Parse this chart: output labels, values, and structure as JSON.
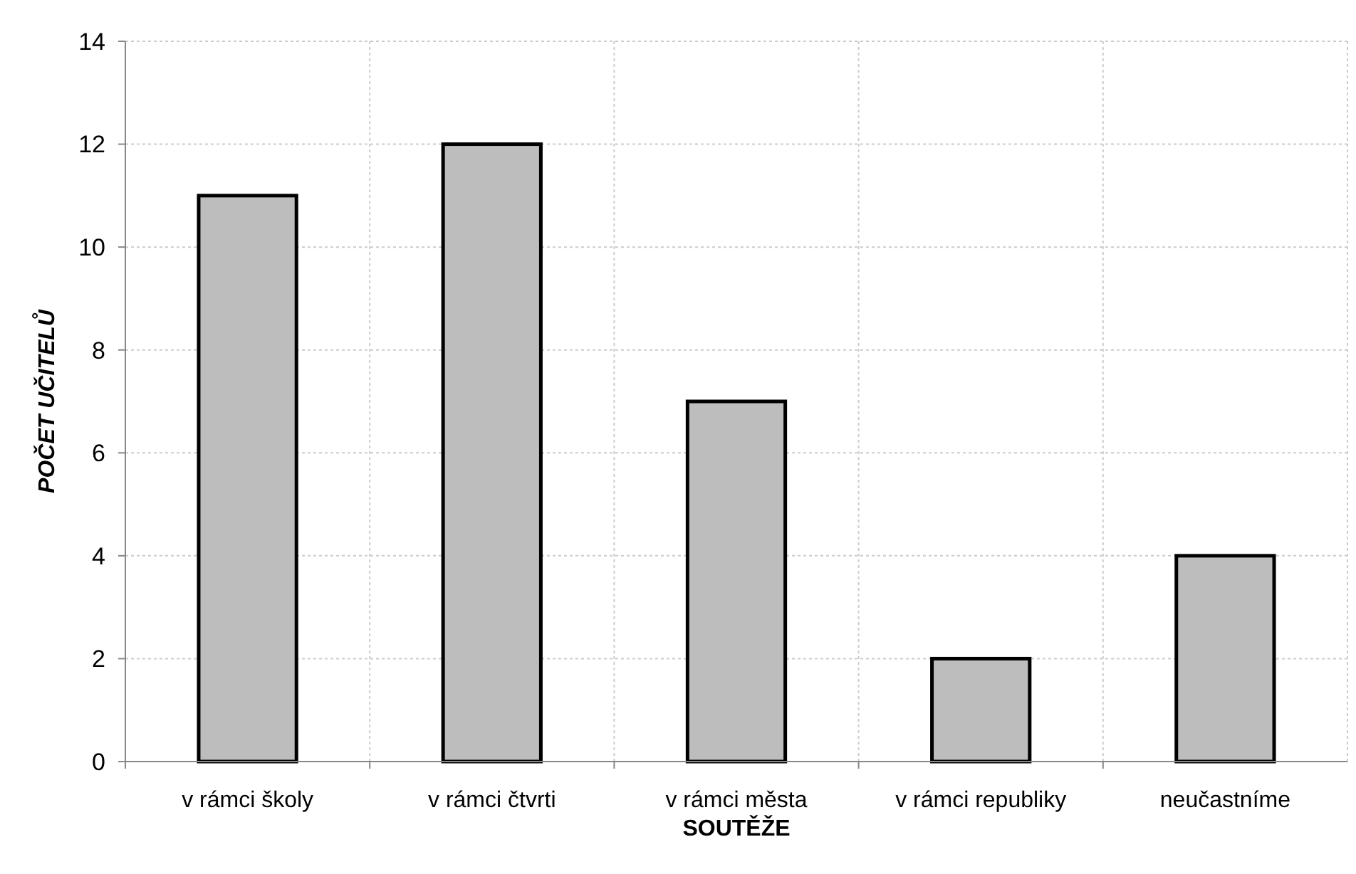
{
  "chart_data": {
    "type": "bar",
    "xlabel": "SOUTĚŽE",
    "ylabel": "POČET UČITELŮ",
    "categories": [
      "v rámci školy",
      "v rámci čtvrti",
      "v rámci města",
      "v rámci republiky",
      "neučastníme"
    ],
    "values": [
      11,
      12,
      7,
      2,
      4
    ],
    "color": "#bdbdbd",
    "ylim": [
      0,
      14
    ],
    "yticks": [
      0,
      2,
      4,
      6,
      8,
      10,
      12,
      14
    ],
    "grid": true
  }
}
